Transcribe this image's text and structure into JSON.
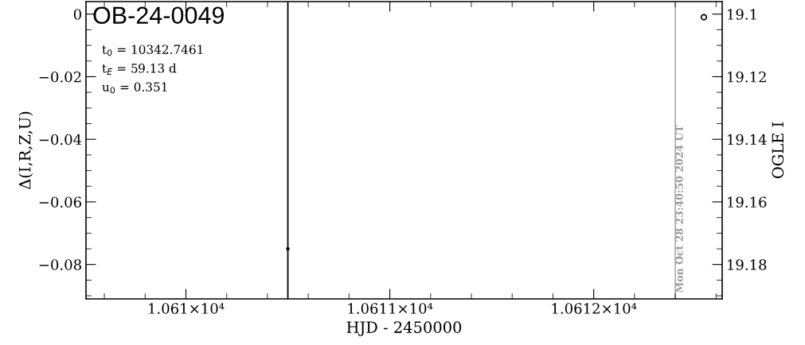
{
  "chart_data": {
    "type": "scatter",
    "title": "OB-24-0049",
    "xlabel": "HJD - 2450000",
    "ylabel": "Δ(I,R,Z,U)",
    "y2label": "OGLE I",
    "annotations": [
      "t$_{0}$ = 10342.7461",
      "t$_{E}$ = 59.13 d",
      "u$_{0}$ = 0.351",
      {
        "text": "Mon Oct 28 23:40:50 2024 UT",
        "x": 10612.4
      }
    ],
    "series": [
      {
        "color": "#000000",
        "x": [
          10612.54
        ],
        "values": [
          19.101
        ],
        "axis": "y2",
        "marker": "circle"
      },
      {
        "color": "#000000",
        "x": [
          10610.5
        ],
        "values": [
          -0.075
        ],
        "marker": "circle"
      }
    ],
    "xlim": [
      10609.51,
      10612.63
    ],
    "xticks": [
      {
        "value": 10610,
        "label": "1.061×10⁴"
      },
      {
        "value": 10611,
        "label": "1.0611×10⁴"
      },
      {
        "value": 10612,
        "label": "1.0612×10⁴"
      }
    ],
    "ylim": [
      -0.091,
      0.004
    ],
    "yticks": [
      {
        "value": 0,
        "label": "0"
      },
      {
        "value": -0.02,
        "label": "−0.02"
      },
      {
        "value": -0.04,
        "label": "−0.04"
      },
      {
        "value": -0.06,
        "label": "−0.06"
      },
      {
        "value": -0.08,
        "label": "−0.08"
      }
    ],
    "y2lim": [
      19.191,
      19.096
    ],
    "y2ticks": [
      19.1,
      19.12,
      19.14,
      19.16,
      19.18
    ],
    "ref_lines": [
      {
        "axis": "x",
        "value": 10610.5,
        "label": null,
        "color": "#000000",
        "line_style": "solid"
      },
      {
        "axis": "x",
        "value": 10612.4,
        "label": null,
        "color": "#999999",
        "line_style": "solid"
      }
    ],
    "grid": false,
    "legend": false
  }
}
